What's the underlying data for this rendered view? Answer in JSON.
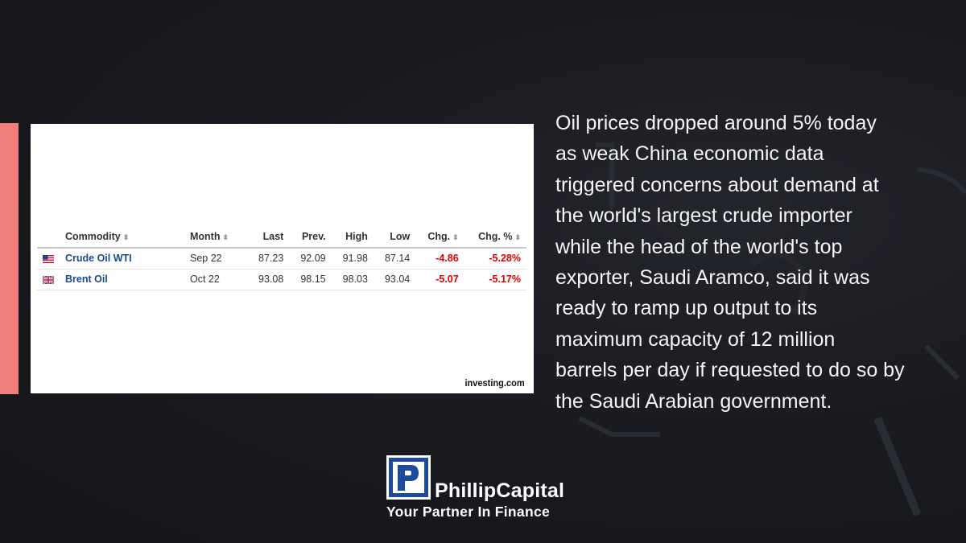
{
  "table": {
    "headers": {
      "commodity": "Commodity",
      "month": "Month",
      "last": "Last",
      "prev": "Prev.",
      "high": "High",
      "low": "Low",
      "chg": "Chg.",
      "chg_pct": "Chg. %"
    },
    "rows": [
      {
        "flag": "us-flag-icon",
        "name": "Crude Oil WTI",
        "month": "Sep 22",
        "last": "87.23",
        "prev": "92.09",
        "high": "91.98",
        "low": "87.14",
        "chg": "-4.86",
        "chg_pct": "-5.28%"
      },
      {
        "flag": "uk-flag-icon",
        "name": "Brent Oil",
        "month": "Oct 22",
        "last": "93.08",
        "prev": "98.15",
        "high": "98.03",
        "low": "93.04",
        "chg": "-5.07",
        "chg_pct": "-5.17%"
      }
    ],
    "source": "investing.com"
  },
  "article": {
    "lines": [
      "Oil prices dropped around 5% today",
      "as weak China economic data",
      "triggered concerns about demand at",
      "the world's largest crude importer",
      "while the head of the world's top",
      "exporter, Saudi Aramco, said it was",
      "ready to ramp up output to its",
      "maximum capacity of 12 million",
      "barrels per day if requested to do so by",
      "the Saudi Arabian government."
    ]
  },
  "brand": {
    "name": "PhillipCapital",
    "tagline": "Your Partner In Finance",
    "logo_letter": "P"
  },
  "colors": {
    "accent": "#f07f7c",
    "negative": "#e00000",
    "link": "#1a4a8f",
    "logo_blue": "#1c4a9c",
    "background": "#1a1b20"
  }
}
